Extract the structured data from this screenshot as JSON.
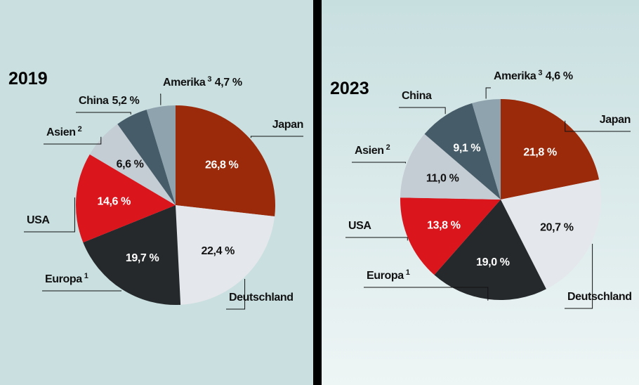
{
  "chart_data": [
    {
      "type": "pie",
      "title": "2019",
      "categories": [
        "Japan",
        "Deutschland",
        "Europa",
        "USA",
        "Asien",
        "China",
        "Amerika"
      ],
      "footnotes": [
        null,
        null,
        "1",
        null,
        "2",
        null,
        "3"
      ],
      "values": [
        26.8,
        22.4,
        19.7,
        14.6,
        6.6,
        5.2,
        4.7
      ],
      "value_labels": [
        "26,8 %",
        "22,4 %",
        "19,7 %",
        "14,6 %",
        "6,6 %",
        "5,2 %",
        "4,7 %"
      ],
      "label_outside": [
        false,
        false,
        false,
        false,
        false,
        true,
        true
      ],
      "colors": [
        "#9b2a0b",
        "#e4e7eb",
        "#25292c",
        "#da151c",
        "#c4ccd4",
        "#465c68",
        "#8ea3ad"
      ]
    },
    {
      "type": "pie",
      "title": "2023",
      "categories": [
        "Japan",
        "Deutschland",
        "Europa",
        "USA",
        "Asien",
        "China",
        "Amerika"
      ],
      "footnotes": [
        null,
        null,
        "1",
        null,
        "2",
        null,
        "3"
      ],
      "values": [
        21.8,
        20.7,
        19.0,
        13.8,
        11.0,
        9.1,
        4.6
      ],
      "value_labels": [
        "21,8 %",
        "20,7 %",
        "19,0 %",
        "13,8 %",
        "11,0 %",
        "9,1 %",
        "4,6 %"
      ],
      "label_outside": [
        false,
        false,
        false,
        false,
        false,
        false,
        true
      ],
      "colors": [
        "#9b2a0b",
        "#e4e7eb",
        "#25292c",
        "#da151c",
        "#c4ccd4",
        "#465c68",
        "#8ea3ad"
      ]
    }
  ]
}
